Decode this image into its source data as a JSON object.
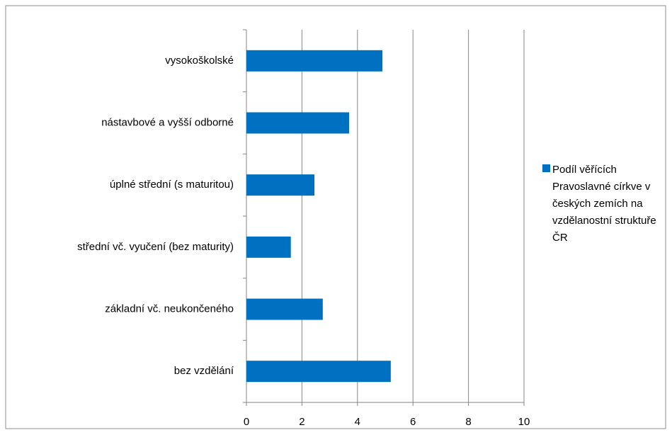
{
  "chart_data": {
    "type": "bar",
    "orientation": "horizontal",
    "categories": [
      "vysokoškolské",
      "nástavbové a vyšší odborné",
      "úplné střední (s maturitou)",
      "střední vč. vyučení (bez maturity)",
      "základní vč. neukončeného",
      "bez vzdělání"
    ],
    "series": [
      {
        "name": "Podíl věřících Pravoslavné církve v českých zemích na vzdělanostní struktuře ČR",
        "color": "#0070c0",
        "values": [
          4.9,
          3.7,
          2.45,
          1.6,
          2.75,
          5.2
        ]
      }
    ],
    "xlim": [
      0,
      10
    ],
    "xticks": [
      0,
      2,
      4,
      6,
      8,
      10
    ],
    "grid": true,
    "legend": "right"
  }
}
